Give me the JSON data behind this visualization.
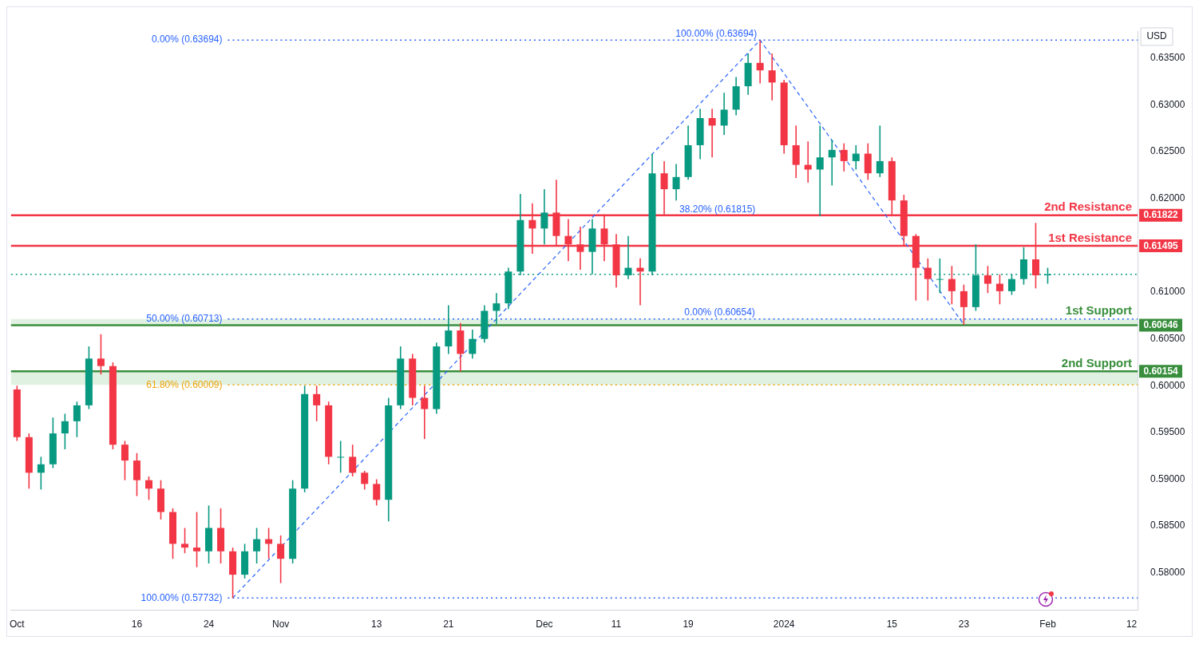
{
  "chart_data": {
    "type": "candlestick",
    "categories": [
      "Oct",
      null,
      null,
      null,
      null,
      null,
      null,
      null,
      null,
      null,
      "16",
      null,
      null,
      null,
      null,
      null,
      "24",
      null,
      null,
      null,
      null,
      null,
      "Nov",
      null,
      null,
      null,
      null,
      null,
      null,
      null,
      "13",
      null,
      null,
      null,
      null,
      null,
      "21",
      null,
      null,
      null,
      null,
      null,
      null,
      null,
      "Dec",
      null,
      null,
      null,
      null,
      null,
      "11",
      null,
      null,
      null,
      null,
      null,
      "19",
      null,
      null,
      null,
      null,
      null,
      null,
      null,
      "2024",
      null,
      null,
      null,
      null,
      null,
      null,
      null,
      null,
      "15",
      null,
      null,
      null,
      null,
      null,
      "23",
      null,
      null,
      null,
      null,
      null,
      null,
      "Feb",
      null,
      null,
      null,
      null,
      null,
      null,
      "12"
    ],
    "ohlc": [
      [
        0.5996,
        0.6,
        0.5941,
        0.5945
      ],
      [
        0.5945,
        0.5949,
        0.589,
        0.5907
      ],
      [
        0.5907,
        0.5924,
        0.5889,
        0.5916
      ],
      [
        0.5916,
        0.5966,
        0.5912,
        0.5949
      ],
      [
        0.5949,
        0.597,
        0.5932,
        0.5962
      ],
      [
        0.5962,
        0.5983,
        0.5945,
        0.5979
      ],
      [
        0.5979,
        0.6042,
        0.5975,
        0.6029
      ],
      [
        0.6029,
        0.6055,
        0.6012,
        0.6021
      ],
      [
        0.6021,
        0.6025,
        0.5932,
        0.5937
      ],
      [
        0.5937,
        0.5941,
        0.5899,
        0.592
      ],
      [
        0.592,
        0.5928,
        0.5882,
        0.5899
      ],
      [
        0.5899,
        0.5903,
        0.5878,
        0.589
      ],
      [
        0.589,
        0.5899,
        0.5857,
        0.5865
      ],
      [
        0.5865,
        0.5869,
        0.5815,
        0.5831
      ],
      [
        0.5831,
        0.5848,
        0.5821,
        0.5827
      ],
      [
        0.5827,
        0.5865,
        0.5806,
        0.5823
      ],
      [
        0.5823,
        0.5872,
        0.581,
        0.5848
      ],
      [
        0.5848,
        0.5869,
        0.581,
        0.5823
      ],
      [
        0.5823,
        0.5827,
        0.5773,
        0.5798
      ],
      [
        0.5798,
        0.5831,
        0.5794,
        0.5823
      ],
      [
        0.5823,
        0.5848,
        0.581,
        0.5836
      ],
      [
        0.5836,
        0.5848,
        0.5815,
        0.5831
      ],
      [
        0.5831,
        0.584,
        0.5789,
        0.5815
      ],
      [
        0.5815,
        0.5899,
        0.581,
        0.589
      ],
      [
        0.589,
        0.6,
        0.5886,
        0.5991
      ],
      [
        0.5991,
        0.6,
        0.5962,
        0.5979
      ],
      [
        0.5979,
        0.5983,
        0.5916,
        0.5924
      ],
      [
        0.5924,
        0.5941,
        0.5907,
        0.5924
      ],
      [
        0.5924,
        0.5937,
        0.5903,
        0.5907
      ],
      [
        0.5907,
        0.5909,
        0.5889,
        0.5895
      ],
      [
        0.5895,
        0.59,
        0.5872,
        0.5878
      ],
      [
        0.5878,
        0.5987,
        0.5855,
        0.5979
      ],
      [
        0.5979,
        0.6042,
        0.5975,
        0.6029
      ],
      [
        0.6029,
        0.6034,
        0.5979,
        0.5987
      ],
      [
        0.5987,
        0.6,
        0.5943,
        0.5975
      ],
      [
        0.5975,
        0.6046,
        0.597,
        0.6042
      ],
      [
        0.6042,
        0.6086,
        0.6034,
        0.6059
      ],
      [
        0.6059,
        0.6067,
        0.6015,
        0.6034
      ],
      [
        0.6034,
        0.606,
        0.6029,
        0.605
      ],
      [
        0.605,
        0.6086,
        0.6046,
        0.608
      ],
      [
        0.608,
        0.6099,
        0.6066,
        0.6088
      ],
      [
        0.6088,
        0.6126,
        0.6082,
        0.6122
      ],
      [
        0.6122,
        0.6205,
        0.6118,
        0.6177
      ],
      [
        0.6177,
        0.6195,
        0.6141,
        0.6168
      ],
      [
        0.6168,
        0.621,
        0.6151,
        0.6185
      ],
      [
        0.6185,
        0.622,
        0.615,
        0.616
      ],
      [
        0.616,
        0.6178,
        0.6133,
        0.6151
      ],
      [
        0.6151,
        0.617,
        0.6124,
        0.6143
      ],
      [
        0.6143,
        0.6178,
        0.6119,
        0.6168
      ],
      [
        0.6168,
        0.6183,
        0.6133,
        0.6151
      ],
      [
        0.6151,
        0.6162,
        0.6105,
        0.6118
      ],
      [
        0.6118,
        0.616,
        0.6114,
        0.6126
      ],
      [
        0.6126,
        0.6136,
        0.6086,
        0.6122
      ],
      [
        0.6122,
        0.6248,
        0.6118,
        0.6227
      ],
      [
        0.6227,
        0.624,
        0.6183,
        0.621
      ],
      [
        0.621,
        0.6237,
        0.6198,
        0.6223
      ],
      [
        0.6223,
        0.6278,
        0.622,
        0.6257
      ],
      [
        0.6257,
        0.6296,
        0.6242,
        0.6286
      ],
      [
        0.6286,
        0.6296,
        0.6244,
        0.6278
      ],
      [
        0.6278,
        0.6313,
        0.6268,
        0.6295
      ],
      [
        0.6295,
        0.633,
        0.6289,
        0.632
      ],
      [
        0.632,
        0.6355,
        0.6311,
        0.6345
      ],
      [
        0.6345,
        0.6369,
        0.6323,
        0.6337
      ],
      [
        0.6337,
        0.6355,
        0.6305,
        0.6324
      ],
      [
        0.6324,
        0.6327,
        0.6248,
        0.6257
      ],
      [
        0.6257,
        0.6278,
        0.6222,
        0.6236
      ],
      [
        0.6236,
        0.6261,
        0.6217,
        0.6231
      ],
      [
        0.6231,
        0.6278,
        0.6181,
        0.6244
      ],
      [
        0.6244,
        0.6263,
        0.6214,
        0.6252
      ],
      [
        0.6252,
        0.6259,
        0.6229,
        0.624
      ],
      [
        0.624,
        0.6257,
        0.6231,
        0.6248
      ],
      [
        0.6248,
        0.6259,
        0.622,
        0.6227
      ],
      [
        0.6227,
        0.6278,
        0.6223,
        0.624
      ],
      [
        0.624,
        0.6244,
        0.6183,
        0.6198
      ],
      [
        0.6198,
        0.6204,
        0.615,
        0.616
      ],
      [
        0.616,
        0.6162,
        0.6091,
        0.6126
      ],
      [
        0.6126,
        0.6136,
        0.6091,
        0.6114
      ],
      [
        0.6114,
        0.6136,
        0.6099,
        0.6114
      ],
      [
        0.6114,
        0.6128,
        0.6087,
        0.6101
      ],
      [
        0.6101,
        0.6108,
        0.6065,
        0.6084
      ],
      [
        0.6084,
        0.6151,
        0.608,
        0.6118
      ],
      [
        0.6118,
        0.6128,
        0.6099,
        0.6109
      ],
      [
        0.6109,
        0.6119,
        0.6087,
        0.6101
      ],
      [
        0.6101,
        0.6119,
        0.6097,
        0.6114
      ],
      [
        0.6114,
        0.6148,
        0.6108,
        0.6135
      ],
      [
        0.6135,
        0.6174,
        0.6104,
        0.6118
      ],
      [
        0.6118,
        0.6126,
        0.6109,
        0.6119
      ],
      null,
      null,
      null,
      null,
      null,
      null,
      null
    ],
    "series": [
      {
        "type": "line",
        "color": "#2962ff",
        "line_style": "dashed",
        "values": [
          null,
          null,
          null,
          null,
          null,
          null,
          null,
          null,
          null,
          null,
          null,
          null,
          null,
          null,
          null,
          null,
          null,
          null,
          0.57732,
          null,
          null,
          null,
          null,
          null,
          null,
          null,
          null,
          null,
          null,
          null,
          null,
          null,
          null,
          null,
          null,
          null,
          null,
          null,
          null,
          null,
          null,
          null,
          null,
          null,
          null,
          null,
          null,
          null,
          null,
          null,
          null,
          null,
          null,
          null,
          null,
          null,
          null,
          null,
          null,
          null,
          null,
          null,
          0.63694,
          null,
          null,
          null,
          null,
          null,
          null,
          null,
          null,
          null,
          null,
          null,
          null,
          null,
          null,
          null,
          null,
          0.60654,
          null,
          null,
          null,
          null,
          null,
          null,
          null,
          null,
          null,
          null,
          null,
          null,
          null,
          null
        ]
      }
    ],
    "ylim": [
      0.576,
      0.6379
    ],
    "yticks": [
      {
        "value": 0.58,
        "label": "0.58000"
      },
      {
        "value": 0.585,
        "label": "0.58500"
      },
      {
        "value": 0.59,
        "label": "0.59000"
      },
      {
        "value": 0.595,
        "label": "0.59500"
      },
      {
        "value": 0.6,
        "label": "0.60000"
      },
      {
        "value": 0.605,
        "label": "0.60500"
      },
      {
        "value": 0.61,
        "label": "0.61000"
      },
      {
        "value": 0.62,
        "label": "0.62000"
      },
      {
        "value": 0.625,
        "label": "0.62500"
      },
      {
        "value": 0.63,
        "label": "0.63000"
      },
      {
        "value": 0.635,
        "label": "0.63500"
      }
    ],
    "bands": [
      {
        "axis": "y",
        "from": 0.60646,
        "to": 0.60713,
        "color": "#c8e6c9"
      },
      {
        "axis": "y",
        "from": 0.60009,
        "to": 0.60154,
        "color": "#c8e6c9"
      }
    ],
    "ref_lines": [
      {
        "axis": "y",
        "value": 0.63694,
        "label": "0.00% (0.63694)",
        "color": "#2962ff",
        "line_style": "dotted"
      },
      {
        "axis": "y",
        "value": 0.60713,
        "label": "50.00% (0.60713)",
        "color": "#2962ff",
        "line_style": "dotted"
      },
      {
        "axis": "y",
        "value": 0.60009,
        "label": "61.80% (0.60009)",
        "color": "#f0a30a",
        "line_style": "dotted"
      },
      {
        "axis": "y",
        "value": 0.57732,
        "label": "100.00% (0.57732)",
        "color": "#2962ff",
        "line_style": "dotted"
      },
      {
        "axis": "y",
        "value": 0.6119,
        "color": "#089981",
        "line_style": "dotted"
      },
      {
        "axis": "y",
        "value": 0.61822,
        "label": "0.61822",
        "color": "#f23645",
        "line_style": "solid"
      },
      {
        "axis": "y",
        "value": 0.61495,
        "label": "0.61495",
        "color": "#f23645",
        "line_style": "solid"
      },
      {
        "axis": "y",
        "value": 0.60646,
        "label": "0.60646",
        "color": "#388e3c",
        "line_style": "solid"
      },
      {
        "axis": "y",
        "value": 0.60154,
        "label": "0.60154",
        "color": "#388e3c",
        "line_style": "solid"
      }
    ],
    "annotations": [
      {
        "text": "100.00% (0.63694)",
        "y": 0.63694
      },
      {
        "text": "38.20% (0.61815)",
        "y": 0.61815
      },
      {
        "text": "0.00% (0.60654)",
        "y": 0.60654
      },
      {
        "text": "2nd Resistance",
        "y": 0.61822
      },
      {
        "text": "1st Resistance",
        "y": 0.61495
      },
      {
        "text": "1st Support",
        "y": 0.60646
      },
      {
        "text": "2nd Support",
        "y": 0.60154
      },
      "USD"
    ]
  }
}
